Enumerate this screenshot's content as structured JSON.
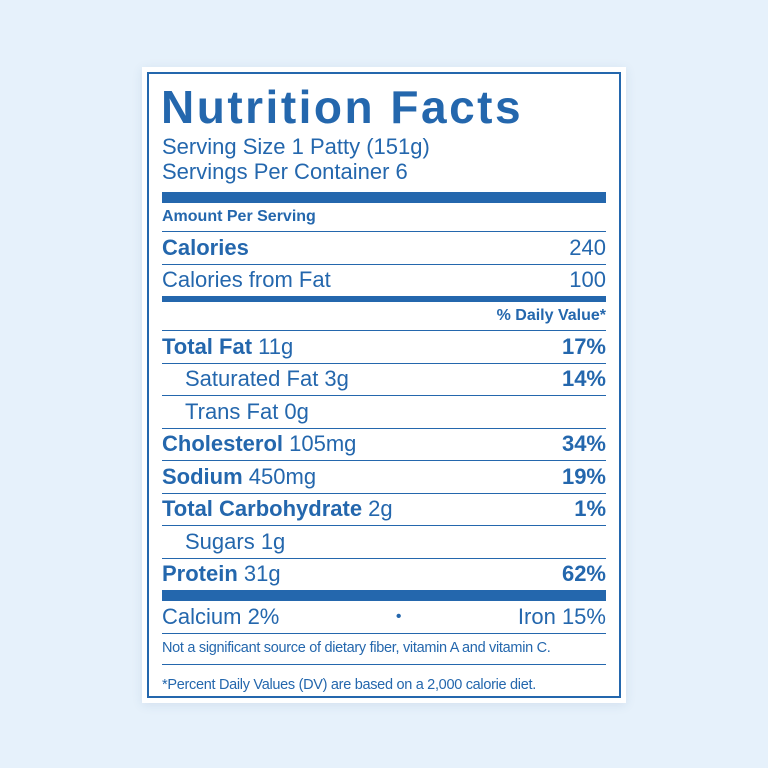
{
  "label": {
    "title": "Nutrition Facts",
    "serving_size": "Serving Size  1 Patty (151g)",
    "servings_per_container": "Servings Per Container  6",
    "amount_per_serving": "Amount Per Serving",
    "calories_label": "Calories",
    "calories_value": "240",
    "calories_from_fat_label": "Calories from Fat",
    "calories_from_fat_value": "100",
    "daily_value_header": "% Daily Value*",
    "nutrients": [
      {
        "name": "Total Fat",
        "amount": " 11g",
        "dv": "17%"
      },
      {
        "name": "Saturated Fat 3g",
        "amount": "",
        "dv": "14%"
      },
      {
        "name": "Trans Fat 0g",
        "amount": "",
        "dv": ""
      },
      {
        "name": "Cholesterol",
        "amount": " 105mg",
        "dv": "34%"
      },
      {
        "name": "Sodium",
        "amount": " 450mg",
        "dv": "19%"
      },
      {
        "name": "Total Carbohydrate",
        "amount": " 2g",
        "dv": "1%"
      },
      {
        "name": "Sugars 1g",
        "amount": "",
        "dv": ""
      },
      {
        "name": "Protein",
        "amount": " 31g",
        "dv": "62%"
      }
    ],
    "calcium": "Calcium 2%",
    "separator": "•",
    "iron": "Iron 15%",
    "footnote_1": "Not a significant source of dietary fiber, vitamin A and vitamin C.",
    "footnote_2": "*Percent Daily Values (DV) are based on a 2,000 calorie diet."
  }
}
